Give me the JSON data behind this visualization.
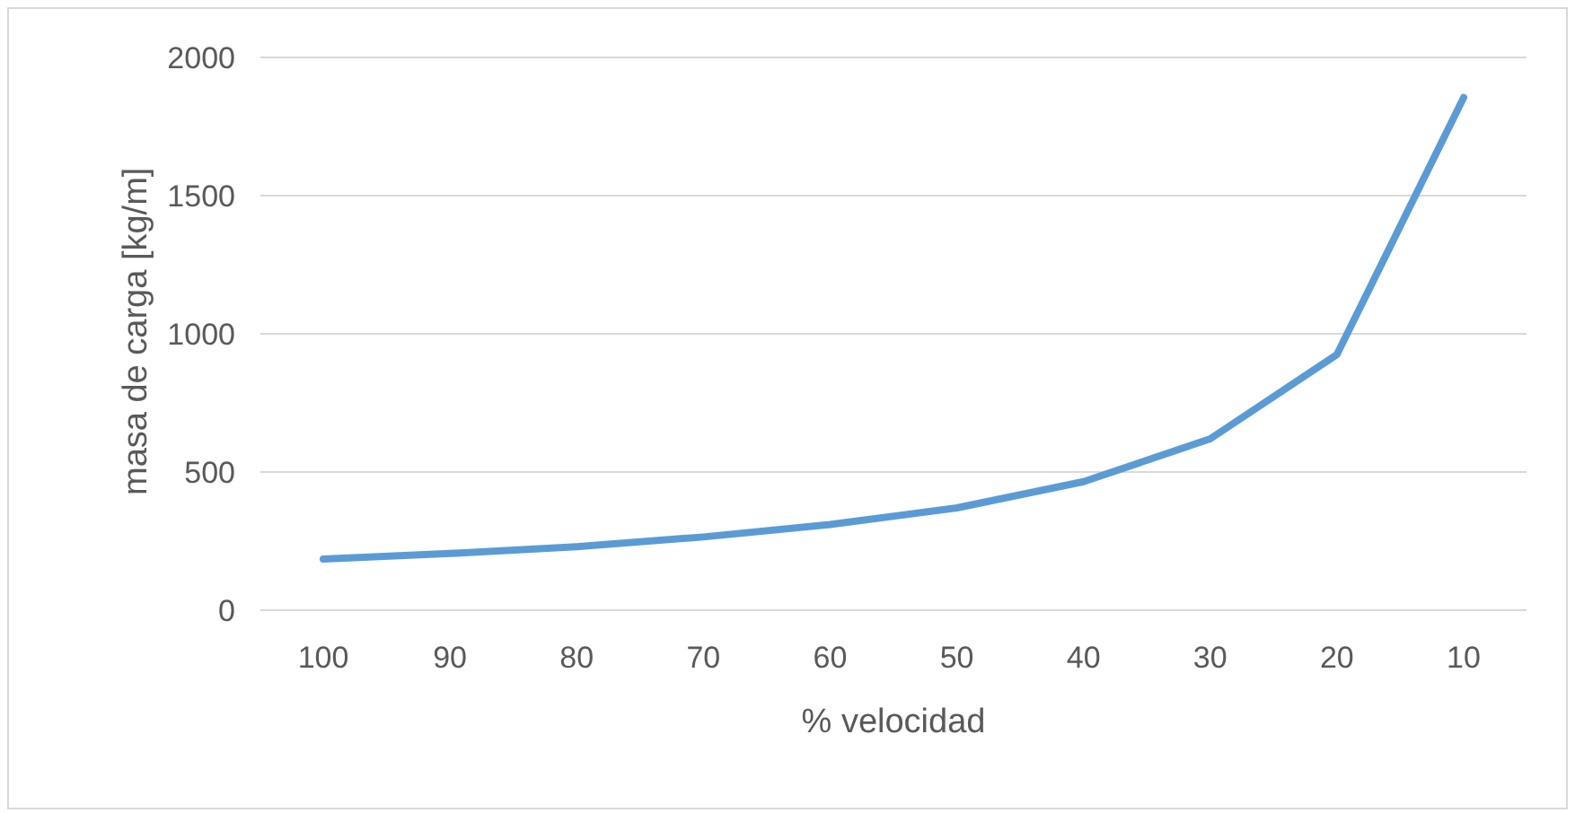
{
  "chart_data": {
    "type": "line",
    "xlabel": "% velocidad",
    "ylabel": "masa de carga [kg/m]",
    "categories": [
      "100",
      "90",
      "80",
      "70",
      "60",
      "50",
      "40",
      "30",
      "20",
      "10"
    ],
    "series": [
      {
        "color": "#5b9bd5",
        "values": [
          185,
          205,
          230,
          265,
          310,
          370,
          465,
          620,
          925,
          1855
        ]
      }
    ],
    "ylim": [
      0,
      2000
    ],
    "yticks": [
      0,
      500,
      1000,
      1500,
      2000
    ],
    "grid": "y",
    "legend": false,
    "marker": "none",
    "line_style": "solid"
  }
}
